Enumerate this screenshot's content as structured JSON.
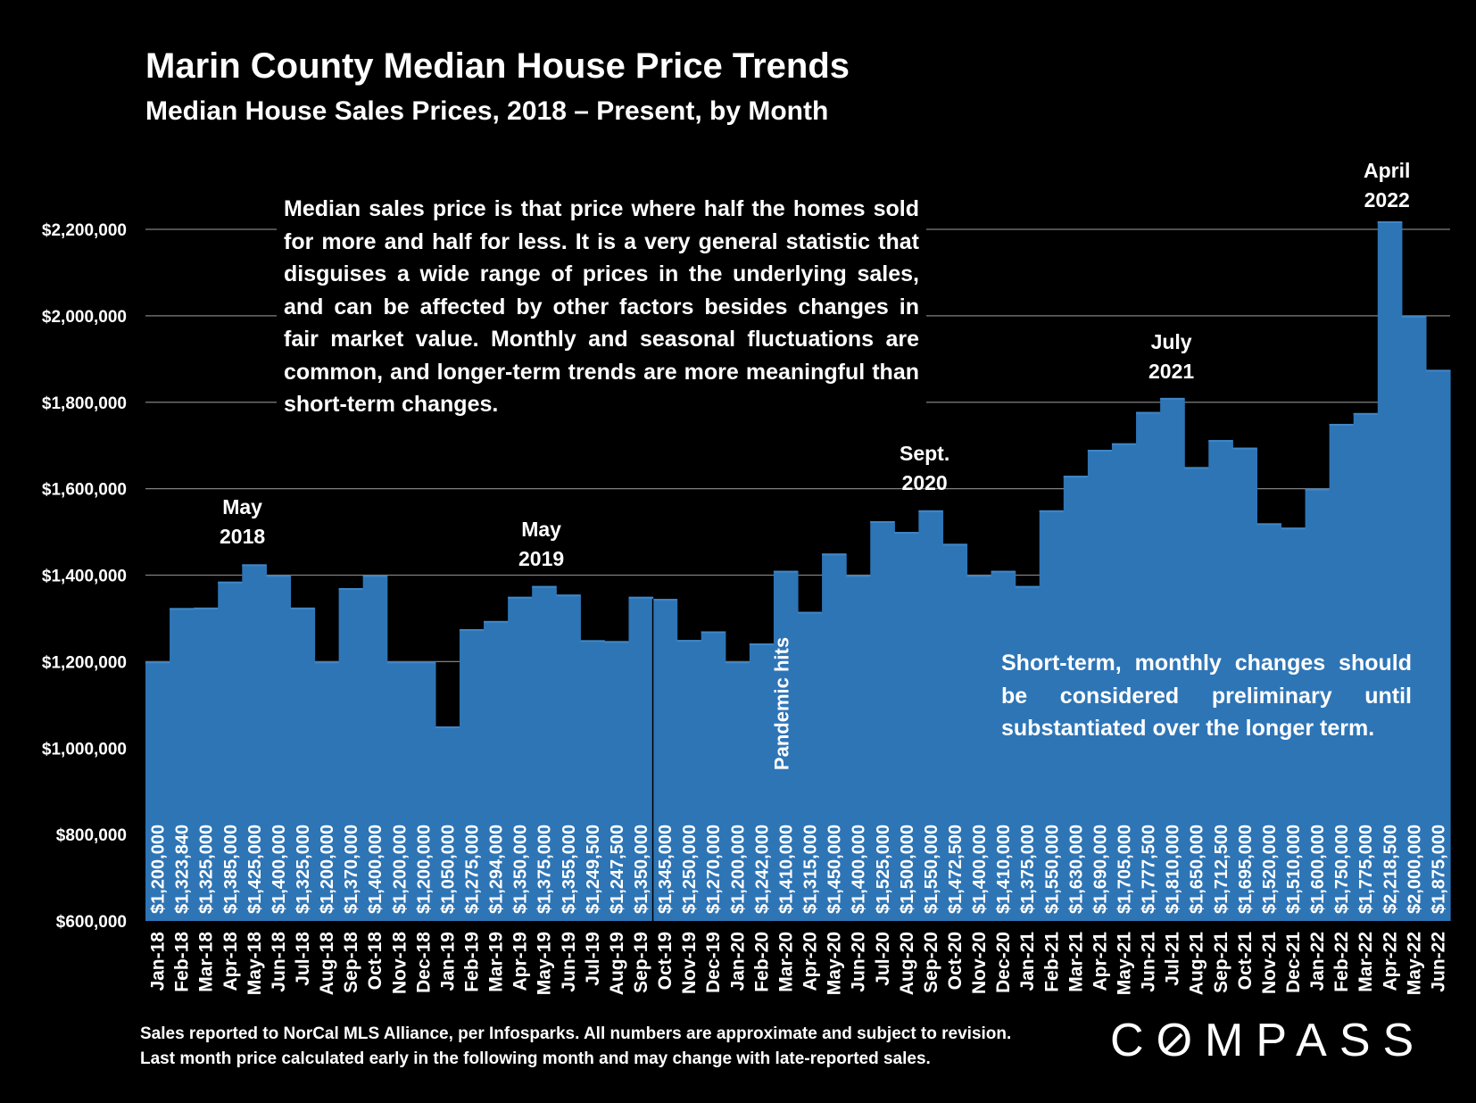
{
  "header": {
    "title": "Marin County Median House Price Trends",
    "subtitle": "Median House Sales Prices, 2018 – Present, by Month"
  },
  "notes": {
    "definition": "Median sales price is that price where half the homes sold for more and half for less. It is a very general statistic that disguises a wide range of prices in the underlying sales, and can be affected by other factors besides changes in fair market value. Monthly and seasonal fluctuations are common, and longer-term trends are more meaningful than short-term changes.",
    "short_term": "Short-term, monthly changes should be considered preliminary until substantiated over the longer term."
  },
  "annotations": {
    "may2018_line1": "May",
    "may2018_line2": "2018",
    "may2019_line1": "May",
    "may2019_line2": "2019",
    "sept2020_line1": "Sept.",
    "sept2020_line2": "2020",
    "july2021_line1": "July",
    "july2021_line2": "2021",
    "april2022_line1": "April",
    "april2022_line2": "2022",
    "pandemic": "Pandemic hits"
  },
  "footer": {
    "line1": "Sales reported to NorCal MLS Alliance, per Infosparks. All numbers are approximate and subject to revision.",
    "line2": "Last month price calculated early in the following month and may change with late-reported sales."
  },
  "logo": {
    "before": "C",
    "o": "O",
    "after": "MPASS"
  },
  "colors": {
    "background": "#000000",
    "bar": "#2e75b6",
    "text": "#ffffff",
    "grid": "#808080"
  },
  "chart_data": {
    "type": "bar",
    "ylim": [
      600000,
      2300000
    ],
    "yticks": [
      600000,
      800000,
      1000000,
      1200000,
      1400000,
      1600000,
      1800000,
      2000000,
      2200000
    ],
    "ytick_labels": [
      "$600,000",
      "$800,000",
      "$1,000,000",
      "$1,200,000",
      "$1,400,000",
      "$1,600,000",
      "$1,800,000",
      "$2,000,000",
      "$2,200,000"
    ],
    "grid": true,
    "categories": [
      "Jan-18",
      "Feb-18",
      "Mar-18",
      "Apr-18",
      "May-18",
      "Jun-18",
      "Jul-18",
      "Aug-18",
      "Sep-18",
      "Oct-18",
      "Nov-18",
      "Dec-18",
      "Jan-19",
      "Feb-19",
      "Mar-19",
      "Apr-19",
      "May-19",
      "Jun-19",
      "Jul-19",
      "Aug-19",
      "Sep-19",
      "Oct-19",
      "Nov-19",
      "Dec-19",
      "Jan-20",
      "Feb-20",
      "Mar-20",
      "Apr-20",
      "May-20",
      "Jun-20",
      "Jul-20",
      "Aug-20",
      "Sep-20",
      "Oct-20",
      "Nov-20",
      "Dec-20",
      "Jan-21",
      "Feb-21",
      "Mar-21",
      "Apr-21",
      "May-21",
      "Jun-21",
      "Jul-21",
      "Aug-21",
      "Sep-21",
      "Oct-21",
      "Nov-21",
      "Dec-21",
      "Jan-22",
      "Feb-22",
      "Mar-22",
      "Apr-22",
      "May-22",
      "Jun-22"
    ],
    "values": [
      1200000,
      1323840,
      1325000,
      1385000,
      1425000,
      1400000,
      1325000,
      1200000,
      1370000,
      1400000,
      1200000,
      1200000,
      1050000,
      1275000,
      1294000,
      1350000,
      1375000,
      1355000,
      1249500,
      1247500,
      1350000,
      1345000,
      1250000,
      1270000,
      1200000,
      1242000,
      1410000,
      1315000,
      1450000,
      1400000,
      1525000,
      1500000,
      1550000,
      1472500,
      1400000,
      1410000,
      1375000,
      1550000,
      1630000,
      1690000,
      1705000,
      1777500,
      1810000,
      1650000,
      1712500,
      1695000,
      1520000,
      1510000,
      1600000,
      1750000,
      1775000,
      2218500,
      2000000,
      1875000
    ],
    "value_labels": [
      "$1,200,000",
      "$1,323,840",
      "$1,325,000",
      "$1,385,000",
      "$1,425,000",
      "$1,400,000",
      "$1,325,000",
      "$1,200,000",
      "$1,370,000",
      "$1,400,000",
      "$1,200,000",
      "$1,200,000",
      "$1,050,000",
      "$1,275,000",
      "$1,294,000",
      "$1,350,000",
      "$1,375,000",
      "$1,355,000",
      "$1,249,500",
      "$1,247,500",
      "$1,350,000",
      "$1,345,000",
      "$1,250,000",
      "$1,270,000",
      "$1,200,000",
      "$1,242,000",
      "$1,410,000",
      "$1,315,000",
      "$1,450,000",
      "$1,400,000",
      "$1,525,000",
      "$1,500,000",
      "$1,550,000",
      "$1,472,500",
      "$1,400,000",
      "$1,410,000",
      "$1,375,000",
      "$1,550,000",
      "$1,630,000",
      "$1,690,000",
      "$1,705,000",
      "$1,777,500",
      "$1,810,000",
      "$1,650,000",
      "$1,712,500",
      "$1,695,000",
      "$1,520,000",
      "$1,510,000",
      "$1,600,000",
      "$1,750,000",
      "$1,775,000",
      "$2,218,500",
      "$2,000,000",
      "$1,875,000"
    ]
  }
}
